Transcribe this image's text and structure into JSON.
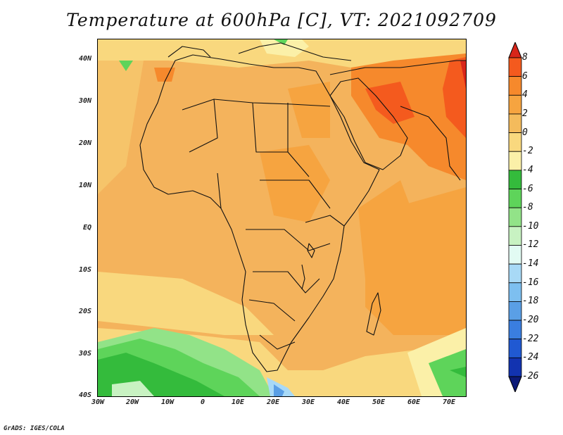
{
  "title": "Temperature at 600hPa [C], VT: 2021092709",
  "credit": "GrADS: IGES/COLA",
  "map": {
    "region": "Africa and Middle East",
    "lon_range": [
      -30,
      75
    ],
    "lat_range": [
      -40,
      45
    ],
    "y_ticks": [
      "40N",
      "30N",
      "20N",
      "10N",
      "EQ",
      "10S",
      "20S",
      "30S",
      "40S"
    ],
    "x_ticks": [
      "30W",
      "20W",
      "10W",
      "0",
      "10E",
      "20E",
      "30E",
      "40E",
      "50E",
      "60E",
      "70E"
    ]
  },
  "colorbar": {
    "labels": [
      "8",
      "6",
      "4",
      "2",
      "0",
      "-2",
      "-4",
      "-6",
      "-8",
      "-10",
      "-12",
      "-14",
      "-16",
      "-18",
      "-20",
      "-22",
      "-24",
      "-26"
    ],
    "colors": [
      "#d8261a",
      "#f45a1e",
      "#f6892c",
      "#f6a440",
      "#f4bb5c",
      "#f9d87e",
      "#fbf0a8",
      "#34bb3c",
      "#5ed45a",
      "#92e388",
      "#c8f2c2",
      "#e2fbf3",
      "#a8d9f6",
      "#7dbff0",
      "#5a9fe6",
      "#3a7ee0",
      "#2059d2",
      "#1233b0",
      "#0c1a78"
    ]
  }
}
